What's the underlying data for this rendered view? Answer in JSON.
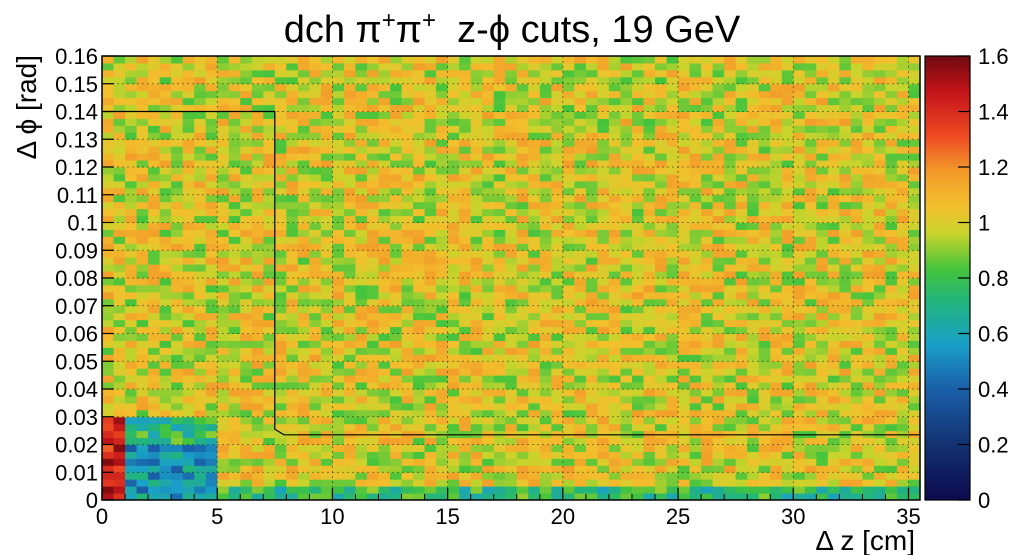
{
  "chart_data": {
    "type": "heatmap",
    "title_prefix": "dch ",
    "title_particle": "π",
    "title_charge": "+",
    "title_suffix": "  z-ϕ cuts, 19 GeV",
    "xlabel": "Δ z [cm]",
    "ylabel": "Δ ϕ [rad]",
    "xlim": [
      0,
      35.5
    ],
    "ylim": [
      0,
      0.16
    ],
    "x_ticks": [
      0,
      5,
      10,
      15,
      20,
      25,
      30,
      35
    ],
    "x_tick_labels": [
      "0",
      "5",
      "10",
      "15",
      "20",
      "25",
      "30",
      "35"
    ],
    "y_ticks": [
      0,
      0.01,
      0.02,
      0.03,
      0.04,
      0.05,
      0.06,
      0.07,
      0.08,
      0.09,
      0.1,
      0.11,
      0.12,
      0.13,
      0.14,
      0.15,
      0.16
    ],
    "y_tick_labels": [
      "0",
      "0.01",
      "0.02",
      "0.03",
      "0.04",
      "0.05",
      "0.06",
      "0.07",
      "0.08",
      "0.09",
      "0.1",
      "0.11",
      "0.12",
      "0.13",
      "0.14",
      "0.15",
      "0.16"
    ],
    "zlim": [
      0,
      1.6
    ],
    "z_ticks": [
      0,
      0.2,
      0.4,
      0.6,
      0.8,
      1,
      1.2,
      1.4,
      1.6
    ],
    "z_tick_labels": [
      "0",
      "0.2",
      "0.4",
      "0.6",
      "0.8",
      "1",
      "1.2",
      "1.4",
      "1.6"
    ],
    "grid": true,
    "colormap": "rainbow (dark blue to dark red)",
    "bins": {
      "nx": 71,
      "ny": 64
    },
    "cells": {
      "background_mean": 1.0,
      "regions": [
        {
          "region": "dz 0-1 cm, dphi 0-0.03 rad",
          "value": 1.45
        },
        {
          "region": "dz 1-5 cm, dphi 0-0.02 rad",
          "value": 0.55
        },
        {
          "region": "dz 1-5 cm, dphi 0.02-0.03 rad",
          "value": 0.75
        },
        {
          "region": "dz 5-35.5 cm, dphi 0-0.005 rad",
          "value": 0.75
        },
        {
          "region": "dz 0-35.5 cm, dphi 0.03-0.16 rad",
          "value": 1.0
        }
      ]
    },
    "cut_contour": {
      "x": [
        0,
        7.5,
        7.5,
        7.9,
        35.5
      ],
      "y": [
        0.14,
        0.14,
        0.0255,
        0.0235,
        0.0235
      ]
    }
  }
}
